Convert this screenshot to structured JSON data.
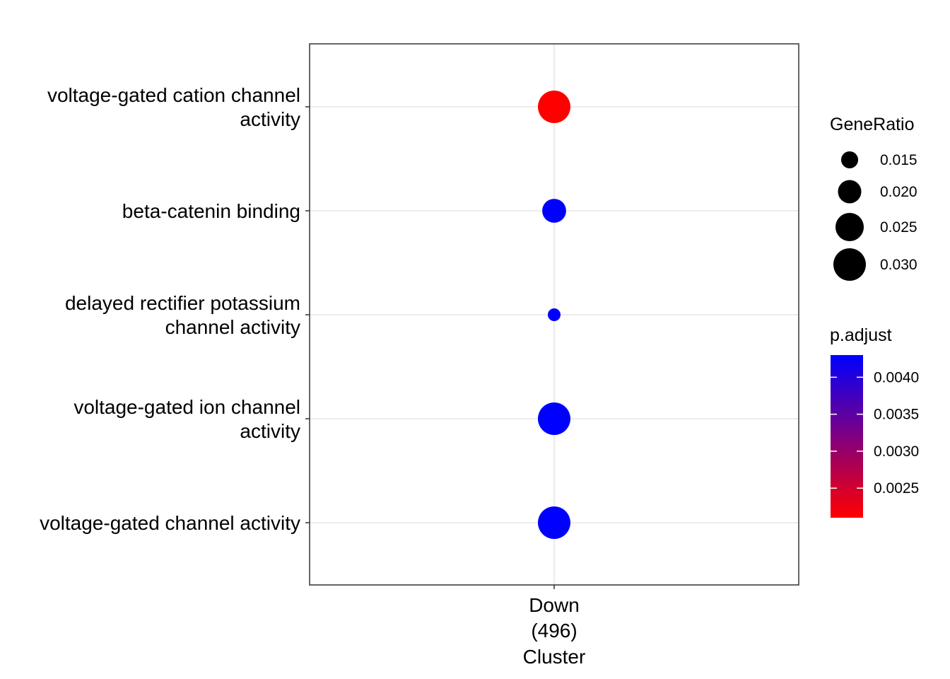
{
  "chart_data": {
    "type": "scatter",
    "title": "",
    "xlabel": "Cluster",
    "ylabel": "",
    "grid": true,
    "legend_position": "right",
    "x_categories": [
      {
        "lines": [
          "Down",
          "(496)"
        ]
      }
    ],
    "y_categories": [
      {
        "lines": [
          "voltage-gated cation channel",
          "activity"
        ]
      },
      {
        "lines": [
          "beta-catenin binding"
        ]
      },
      {
        "lines": [
          "delayed rectifier potassium",
          "channel activity"
        ]
      },
      {
        "lines": [
          "voltage-gated ion channel",
          "activity"
        ]
      },
      {
        "lines": [
          "voltage-gated channel activity"
        ]
      }
    ],
    "points": [
      {
        "x": 0,
        "y": 0,
        "gene_ratio": 0.03,
        "p_adjust": 0.0021
      },
      {
        "x": 0,
        "y": 1,
        "gene_ratio": 0.0205,
        "p_adjust": 0.0043
      },
      {
        "x": 0,
        "y": 2,
        "gene_ratio": 0.0125,
        "p_adjust": 0.0043
      },
      {
        "x": 0,
        "y": 3,
        "gene_ratio": 0.03,
        "p_adjust": 0.0043
      },
      {
        "x": 0,
        "y": 4,
        "gene_ratio": 0.03,
        "p_adjust": 0.0043
      }
    ],
    "size_legend": {
      "title": "GeneRatio",
      "values": [
        0.015,
        0.02,
        0.025,
        0.03
      ],
      "labels": [
        "0.015",
        "0.020",
        "0.025",
        "0.030"
      ],
      "range": [
        0.0125,
        0.03
      ]
    },
    "color_legend": {
      "title": "p.adjust",
      "range": [
        0.0021,
        0.0043
      ],
      "low_color": "#ff0000",
      "high_color": "#0000ff",
      "ticks": [
        0.0025,
        0.003,
        0.0035,
        0.004
      ],
      "tick_labels": [
        "0.0025",
        "0.0030",
        "0.0035",
        "0.0040"
      ]
    }
  }
}
